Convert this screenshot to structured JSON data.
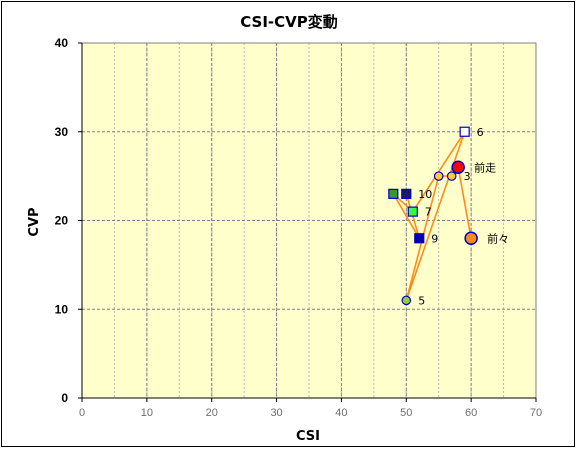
{
  "chart_data": {
    "type": "scatter",
    "title": "CSI-CVP変動",
    "xlabel": "CSI",
    "ylabel": "CVP",
    "xlim": [
      0,
      70
    ],
    "ylim": [
      0,
      40
    ],
    "xticks": [
      0,
      10,
      20,
      30,
      40,
      50,
      60,
      70
    ],
    "yticks": [
      0,
      10,
      20,
      30,
      40
    ],
    "grid": true,
    "colors": {
      "plot_bg": "#ffffcc",
      "grid": "#808080",
      "line": "#ff8c1a",
      "marker_edge": "#0000cc"
    },
    "path_order": [
      "前々",
      "前走",
      "3",
      "4",
      "5",
      "6",
      "7",
      "8",
      "9",
      "10"
    ],
    "points": [
      {
        "id": "前走",
        "label": "前走",
        "x": 58,
        "y": 26,
        "shape": "circle",
        "size": "large",
        "fill": "#ff0000"
      },
      {
        "id": "前々",
        "label": "前々",
        "x": 60,
        "y": 18,
        "shape": "circle",
        "size": "large",
        "fill": "#ff8c1a"
      },
      {
        "id": "3",
        "label": "3",
        "x": 57,
        "y": 25,
        "shape": "circle",
        "size": "small",
        "fill": "#ffcc33"
      },
      {
        "id": "4",
        "label": "",
        "x": 55,
        "y": 25,
        "shape": "circle",
        "size": "small",
        "fill": "#ffcc33"
      },
      {
        "id": "5",
        "label": "5",
        "x": 50,
        "y": 11,
        "shape": "circle",
        "size": "small",
        "fill": "#99cc33"
      },
      {
        "id": "6",
        "label": "6",
        "x": 59,
        "y": 30,
        "shape": "square",
        "size": "small",
        "fill": "#ffffff"
      },
      {
        "id": "7",
        "label": "7",
        "x": 51,
        "y": 21,
        "shape": "square",
        "size": "small",
        "fill": "#33ff33"
      },
      {
        "id": "8",
        "label": "",
        "x": 48,
        "y": 23,
        "shape": "square",
        "size": "small",
        "fill": "#339933"
      },
      {
        "id": "9",
        "label": "9",
        "x": 52,
        "y": 18,
        "shape": "square",
        "size": "small",
        "fill": "#0000aa"
      },
      {
        "id": "10",
        "label": "10",
        "x": 50,
        "y": 23,
        "shape": "square",
        "size": "small",
        "fill": "#1a1a66"
      }
    ]
  }
}
